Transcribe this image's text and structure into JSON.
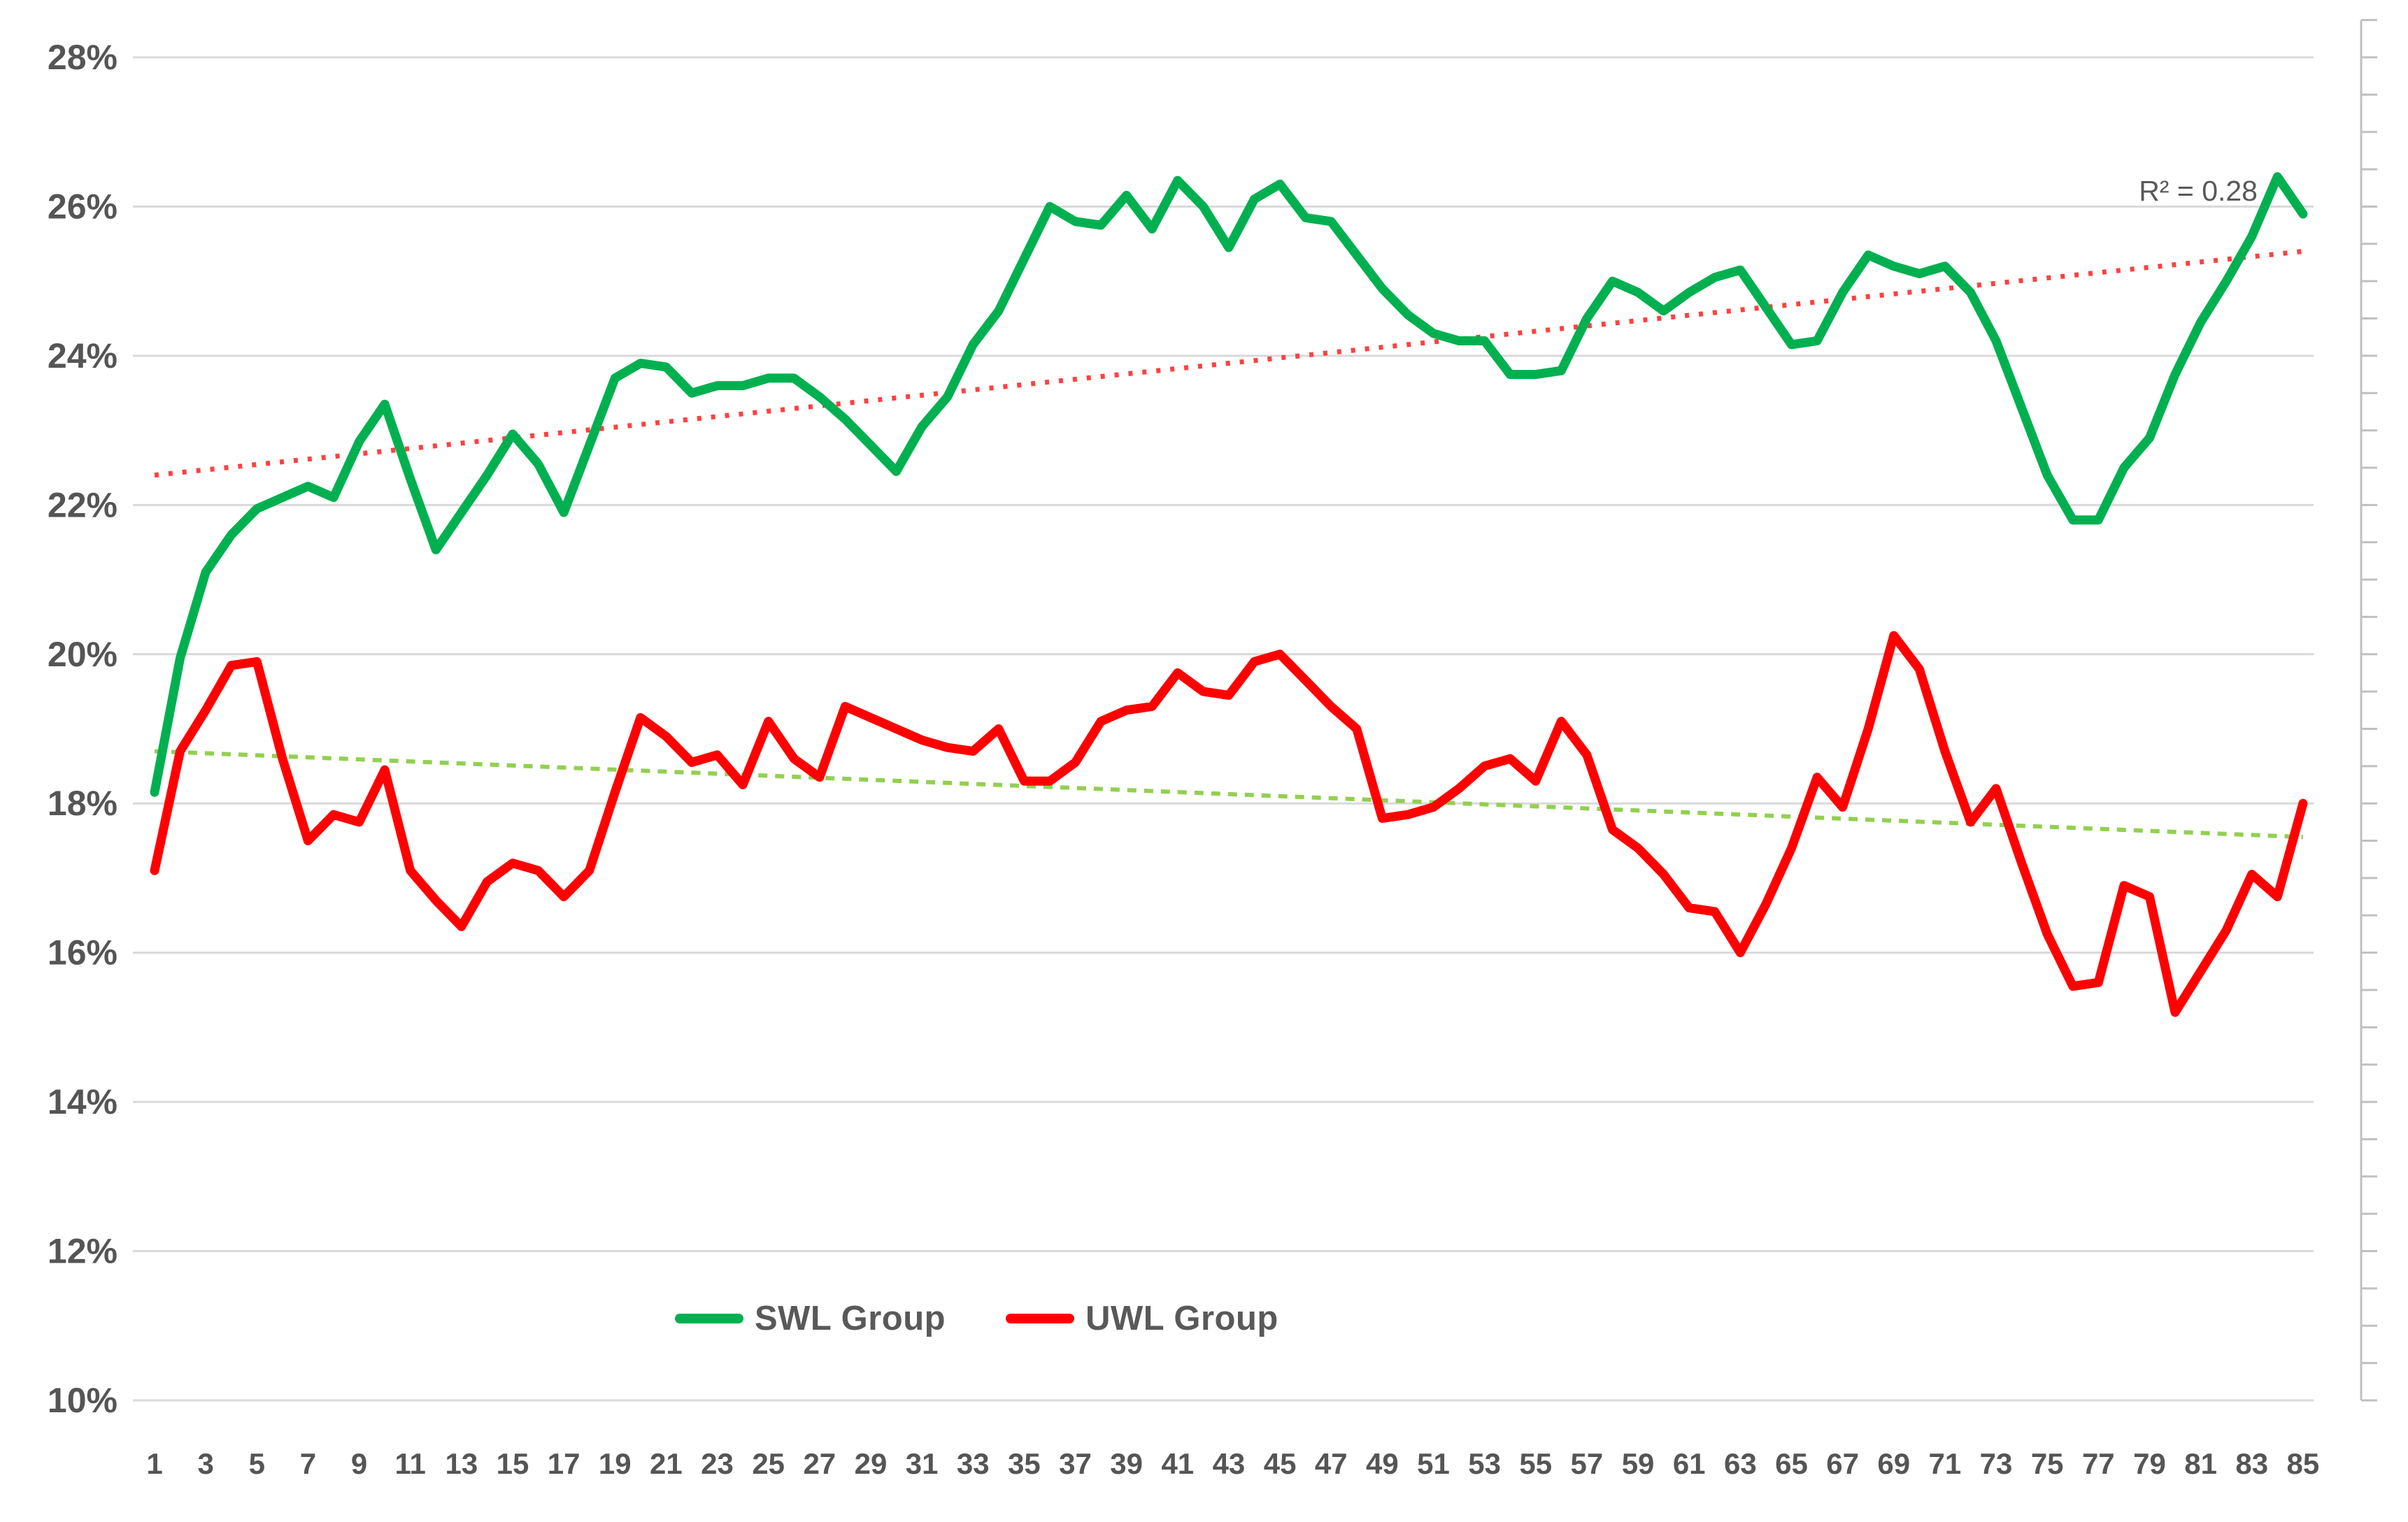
{
  "annotation": {
    "r2": "R² = 0.28"
  },
  "legend": {
    "items": [
      {
        "label": "SWL Group",
        "color": "#00b050"
      },
      {
        "label": "UWL Group",
        "color": "#ff0000"
      }
    ]
  },
  "colors": {
    "swl_line": "#00b050",
    "uwl_line": "#ff0000",
    "swl_trend": "#ff4040",
    "uwl_trend": "#92d050",
    "gridline": "#d9d9d9",
    "axis_line": "#c0c0c0",
    "label_text": "#555555"
  },
  "chart_data": {
    "type": "line",
    "title": "",
    "xlabel": "",
    "ylabel": "",
    "grid": "horizontal-major",
    "legend_position": "bottom",
    "ylim": [
      10,
      28
    ],
    "y_unit": "%",
    "y_major_ticks": [
      28,
      26,
      24,
      22,
      20,
      18,
      16,
      14,
      12,
      10
    ],
    "y_tick_labels": [
      "28%",
      "26%",
      "24%",
      "22%",
      "20%",
      "18%",
      "16%",
      "14%",
      "12%",
      "10%"
    ],
    "y_minor_tick_step": 0.5,
    "x_range": [
      1,
      85
    ],
    "x_tick_labels": [
      "1",
      "3",
      "5",
      "7",
      "9",
      "11",
      "13",
      "15",
      "17",
      "19",
      "21",
      "23",
      "25",
      "27",
      "29",
      "31",
      "33",
      "35",
      "37",
      "39",
      "41",
      "43",
      "45",
      "47",
      "49",
      "51",
      "53",
      "55",
      "57",
      "59",
      "61",
      "63",
      "65",
      "67",
      "69",
      "71",
      "73",
      "75",
      "77",
      "79",
      "81",
      "83",
      "85"
    ],
    "series": [
      {
        "name": "SWL Group",
        "color": "#00b050",
        "values": [
          18.15,
          19.95,
          21.1,
          21.6,
          21.95,
          22.1,
          22.25,
          22.1,
          22.85,
          23.35,
          22.35,
          21.4,
          21.9,
          22.4,
          22.95,
          22.55,
          21.9,
          22.8,
          23.7,
          23.9,
          23.85,
          23.5,
          23.6,
          23.6,
          23.7,
          23.7,
          23.45,
          23.15,
          22.8,
          22.45,
          23.05,
          23.45,
          24.15,
          24.6,
          25.3,
          26.0,
          25.8,
          25.75,
          26.15,
          25.7,
          26.35,
          26.0,
          25.45,
          26.1,
          26.3,
          25.85,
          25.8,
          25.35,
          24.9,
          24.55,
          24.3,
          24.2,
          24.2,
          23.75,
          23.75,
          23.8,
          24.5,
          25.0,
          24.85,
          24.6,
          24.85,
          25.05,
          25.15,
          24.65,
          24.15,
          24.2,
          24.85,
          25.35,
          25.2,
          25.1,
          25.2,
          24.85,
          24.2,
          23.3,
          22.4,
          21.8,
          21.8,
          22.5,
          22.9,
          23.75,
          24.45,
          25.0,
          25.6,
          26.4,
          25.9
        ]
      },
      {
        "name": "UWL Group",
        "color": "#ff0000",
        "values": [
          17.1,
          18.7,
          19.25,
          19.85,
          19.9,
          18.6,
          17.5,
          17.85,
          17.75,
          18.45,
          17.1,
          16.7,
          16.35,
          16.95,
          17.2,
          17.1,
          16.75,
          17.1,
          18.15,
          19.15,
          18.9,
          18.55,
          18.65,
          18.25,
          19.1,
          18.6,
          18.35,
          19.3,
          19.15,
          19.0,
          18.85,
          18.75,
          18.7,
          19.0,
          18.3,
          18.3,
          18.55,
          19.1,
          19.25,
          19.3,
          19.75,
          19.5,
          19.45,
          19.9,
          20.0,
          19.65,
          19.3,
          19.0,
          17.8,
          17.85,
          17.95,
          18.2,
          18.5,
          18.6,
          18.3,
          19.1,
          18.65,
          17.65,
          17.4,
          17.05,
          16.6,
          16.55,
          16.0,
          16.65,
          17.4,
          18.35,
          17.95,
          19.0,
          20.25,
          19.8,
          18.7,
          17.75,
          18.2,
          17.2,
          16.25,
          15.55,
          15.6,
          16.9,
          16.75,
          15.2,
          15.75,
          16.3,
          17.05,
          16.75,
          18.0
        ]
      }
    ],
    "trendlines": [
      {
        "series": "SWL Group",
        "style": "dotted",
        "color": "#ff4040",
        "start_value": 22.4,
        "end_value": 25.4,
        "r_squared": 0.28
      },
      {
        "series": "UWL Group",
        "style": "dotted",
        "color": "#92d050",
        "start_value": 18.7,
        "end_value": 17.55
      }
    ]
  }
}
